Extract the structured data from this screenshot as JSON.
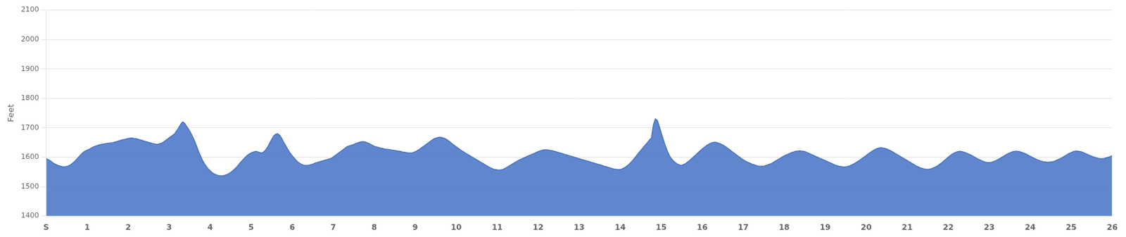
{
  "chart_data": {
    "type": "area",
    "ylabel": "Feet",
    "color": "#4472c4",
    "grid": "y",
    "xlim": [
      0,
      26
    ],
    "xticks": [
      {
        "value": 0,
        "label": "S"
      },
      1,
      2,
      3,
      4,
      5,
      6,
      7,
      8,
      9,
      10,
      11,
      12,
      13,
      14,
      15,
      16,
      17,
      18,
      19,
      20,
      21,
      22,
      23,
      24,
      25,
      26
    ],
    "ylim": [
      1400,
      2100
    ],
    "yticks": [
      1400,
      1500,
      1600,
      1700,
      1800,
      1900,
      2000,
      2100
    ],
    "values": [
      1595,
      1592,
      1588,
      1583,
      1578,
      1575,
      1572,
      1570,
      1568,
      1567,
      1568,
      1570,
      1573,
      1578,
      1583,
      1590,
      1597,
      1605,
      1612,
      1618,
      1622,
      1625,
      1628,
      1632,
      1635,
      1638,
      1640,
      1642,
      1644,
      1645,
      1646,
      1647,
      1648,
      1649,
      1650,
      1652,
      1654,
      1656,
      1658,
      1660,
      1661,
      1663,
      1664,
      1665,
      1664,
      1663,
      1662,
      1660,
      1658,
      1656,
      1654,
      1652,
      1650,
      1648,
      1646,
      1645,
      1644,
      1645,
      1647,
      1650,
      1655,
      1660,
      1665,
      1670,
      1675,
      1680,
      1690,
      1700,
      1712,
      1720,
      1715,
      1705,
      1695,
      1683,
      1670,
      1655,
      1638,
      1620,
      1605,
      1590,
      1578,
      1568,
      1560,
      1553,
      1547,
      1543,
      1540,
      1538,
      1537,
      1537,
      1538,
      1540,
      1543,
      1547,
      1552,
      1558,
      1564,
      1572,
      1580,
      1588,
      1595,
      1602,
      1608,
      1612,
      1616,
      1618,
      1620,
      1618,
      1616,
      1614,
      1618,
      1625,
      1635,
      1648,
      1660,
      1672,
      1678,
      1680,
      1675,
      1665,
      1652,
      1640,
      1628,
      1617,
      1608,
      1600,
      1592,
      1585,
      1580,
      1576,
      1573,
      1572,
      1572,
      1573,
      1575,
      1577,
      1580,
      1582,
      1584,
      1586,
      1588,
      1590,
      1592,
      1594,
      1596,
      1600,
      1605,
      1610,
      1615,
      1620,
      1625,
      1630,
      1635,
      1638,
      1640,
      1642,
      1645,
      1648,
      1650,
      1652,
      1653,
      1652,
      1650,
      1647,
      1644,
      1640,
      1637,
      1635,
      1633,
      1631,
      1630,
      1628,
      1627,
      1626,
      1625,
      1624,
      1623,
      1622,
      1621,
      1620,
      1618,
      1617,
      1616,
      1615,
      1614,
      1615,
      1617,
      1620,
      1624,
      1628,
      1633,
      1638,
      1643,
      1648,
      1653,
      1658,
      1662,
      1665,
      1667,
      1668,
      1667,
      1665,
      1662,
      1658,
      1653,
      1647,
      1642,
      1637,
      1632,
      1627,
      1622,
      1618,
      1614,
      1610,
      1606,
      1602,
      1598,
      1594,
      1590,
      1586,
      1582,
      1578,
      1574,
      1570,
      1566,
      1563,
      1560,
      1558,
      1557,
      1556,
      1557,
      1559,
      1562,
      1566,
      1570,
      1574,
      1578,
      1582,
      1586,
      1590,
      1593,
      1596,
      1599,
      1602,
      1605,
      1608,
      1611,
      1614,
      1617,
      1620,
      1622,
      1624,
      1625,
      1625,
      1624,
      1623,
      1622,
      1620,
      1618,
      1616,
      1614,
      1612,
      1610,
      1608,
      1606,
      1604,
      1602,
      1600,
      1598,
      1596,
      1594,
      1592,
      1590,
      1588,
      1586,
      1584,
      1582,
      1580,
      1578,
      1576,
      1574,
      1572,
      1570,
      1568,
      1566,
      1564,
      1562,
      1560,
      1559,
      1558,
      1558,
      1560,
      1563,
      1567,
      1572,
      1578,
      1585,
      1593,
      1601,
      1610,
      1618,
      1626,
      1634,
      1642,
      1650,
      1658,
      1665,
      1710,
      1730,
      1725,
      1705,
      1682,
      1660,
      1640,
      1622,
      1607,
      1596,
      1588,
      1582,
      1577,
      1574,
      1572,
      1574,
      1577,
      1582,
      1587,
      1593,
      1599,
      1605,
      1612,
      1618,
      1624,
      1630,
      1635,
      1640,
      1644,
      1648,
      1650,
      1651,
      1650,
      1648,
      1645,
      1642,
      1638,
      1633,
      1628,
      1623,
      1618,
      1613,
      1608,
      1603,
      1598,
      1593,
      1589,
      1585,
      1582,
      1579,
      1576,
      1574,
      1572,
      1570,
      1569,
      1569,
      1570,
      1572,
      1574,
      1577,
      1580,
      1584,
      1588,
      1592,
      1596,
      1600,
      1604,
      1607,
      1610,
      1613,
      1616,
      1618,
      1620,
      1621,
      1622,
      1621,
      1620,
      1618,
      1615,
      1612,
      1609,
      1606,
      1603,
      1600,
      1597,
      1594,
      1591,
      1588,
      1585,
      1582,
      1579,
      1576,
      1573,
      1571,
      1569,
      1568,
      1567,
      1567,
      1568,
      1570,
      1573,
      1576,
      1580,
      1584,
      1588,
      1593,
      1598,
      1603,
      1608,
      1613,
      1618,
      1622,
      1626,
      1629,
      1631,
      1632,
      1631,
      1630,
      1628,
      1625,
      1622,
      1618,
      1614,
      1610,
      1606,
      1602,
      1598,
      1594,
      1590,
      1586,
      1582,
      1578,
      1574,
      1570,
      1567,
      1564,
      1562,
      1560,
      1559,
      1559,
      1560,
      1562,
      1565,
      1568,
      1572,
      1577,
      1582,
      1588,
      1594,
      1600,
      1605,
      1610,
      1614,
      1617,
      1619,
      1620,
      1619,
      1617,
      1615,
      1612,
      1609,
      1606,
      1602,
      1598,
      1594,
      1591,
      1588,
      1585,
      1583,
      1582,
      1582,
      1583,
      1585,
      1588,
      1591,
      1595,
      1599,
      1603,
      1607,
      1611,
      1614,
      1617,
      1619,
      1620,
      1620,
      1619,
      1617,
      1615,
      1612,
      1609,
      1605,
      1602,
      1598,
      1595,
      1592,
      1589,
      1587,
      1585,
      1584,
      1583,
      1583,
      1584,
      1585,
      1587,
      1590,
      1593,
      1596,
      1600,
      1604,
      1608,
      1612,
      1615,
      1618,
      1620,
      1621,
      1620,
      1619,
      1617,
      1614,
      1611,
      1608,
      1605,
      1602,
      1600,
      1598,
      1596,
      1595,
      1595,
      1596,
      1598,
      1600,
      1602,
      1605
    ]
  }
}
